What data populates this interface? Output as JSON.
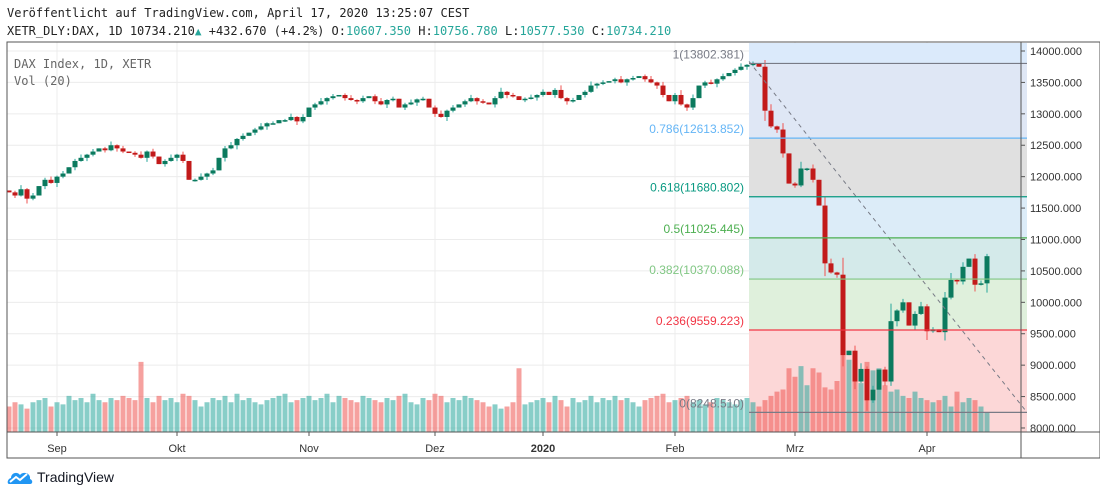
{
  "header": {
    "published": "Veröffentlicht auf TradingView.com, April 17, 2020 13:25:07 CEST",
    "symbol": "XETR_DLY:DAX, 1D",
    "last": "10734.210",
    "change": "+432.670 (+4.2%)",
    "o_label": "O:",
    "o": "10607.350",
    "h_label": "H:",
    "h": "10756.780",
    "l_label": "L:",
    "l": "10577.530",
    "c_label": "C:",
    "c": "10734.210"
  },
  "legend": {
    "title": "DAX Index, 1D, XETR",
    "vol": "Vol (20)"
  },
  "footer": {
    "brand": "TradingView"
  },
  "colors": {
    "up": "#26a69a",
    "down": "#ef5350",
    "upDark": "#0b7a5e",
    "downDark": "#c21a1a"
  },
  "chart_data": {
    "type": "candlestick",
    "ylim": [
      8000,
      14000
    ],
    "yticks": [
      "14000.000",
      "13500.000",
      "13000.000",
      "12500.000",
      "12000.000",
      "11500.000",
      "11000.000",
      "10500.000",
      "10000.000",
      "9500.000",
      "9000.000",
      "8500.000",
      "8000.000"
    ],
    "xticks": [
      {
        "label": "Sep",
        "day": 8
      },
      {
        "label": "Okt",
        "day": 28
      },
      {
        "label": "Nov",
        "day": 50
      },
      {
        "label": "Dez",
        "day": 71
      },
      {
        "label": "2020",
        "day": 89
      },
      {
        "label": "Feb",
        "day": 111
      },
      {
        "label": "Mrz",
        "day": 131
      },
      {
        "label": "Apr",
        "day": 153
      }
    ],
    "start": 11780,
    "closes": [
      11750,
      11700,
      11800,
      11650,
      11700,
      11850,
      11950,
      11900,
      12000,
      12050,
      12150,
      12250,
      12300,
      12350,
      12400,
      12450,
      12420,
      12500,
      12450,
      12400,
      12380,
      12350,
      12300,
      12400,
      12320,
      12200,
      12250,
      12300,
      12350,
      12250,
      11950,
      11950,
      12000,
      12050,
      12100,
      12300,
      12450,
      12500,
      12600,
      12650,
      12700,
      12750,
      12800,
      12850,
      12850,
      12900,
      12900,
      12950,
      12880,
      12950,
      13100,
      13150,
      13200,
      13250,
      13280,
      13300,
      13250,
      13220,
      13200,
      13250,
      13280,
      13200,
      13150,
      13220,
      13240,
      13100,
      13150,
      13180,
      13230,
      13240,
      13100,
      13000,
      12950,
      13050,
      13100,
      13150,
      13200,
      13250,
      13200,
      13180,
      13150,
      13250,
      13350,
      13300,
      13280,
      13220,
      13240,
      13260,
      13300,
      13350,
      13300,
      13380,
      13250,
      13200,
      13220,
      13300,
      13350,
      13450,
      13480,
      13500,
      13520,
      13550,
      13500,
      13550,
      13570,
      13600,
      13550,
      13500,
      13450,
      13300,
      13200,
      13300,
      13150,
      13100,
      13250,
      13450,
      13500,
      13480,
      13550,
      13600,
      13650,
      13700,
      13750,
      13780,
      13800,
      13750,
      13050,
      12800,
      12750,
      12370,
      11890,
      11860,
      12130,
      12130,
      11950,
      11540,
      10620,
      10475,
      10440,
      9160,
      9230,
      8740,
      8940,
      8440,
      8610,
      8930,
      8740,
      9700,
      9870,
      10000,
      9630,
      9815,
      9936,
      9540,
      9570,
      9525,
      10075,
      10356,
      10332,
      10565,
      10696,
      10280,
      10302,
      10734
    ],
    "volumes": [
      60,
      70,
      65,
      55,
      70,
      75,
      80,
      60,
      70,
      65,
      85,
      75,
      80,
      70,
      90,
      75,
      70,
      80,
      75,
      85,
      80,
      75,
      165,
      80,
      70,
      85,
      75,
      80,
      70,
      90,
      85,
      75,
      60,
      70,
      80,
      75,
      85,
      70,
      90,
      75,
      80,
      70,
      65,
      75,
      80,
      85,
      90,
      70,
      75,
      80,
      85,
      75,
      80,
      90,
      70,
      85,
      80,
      75,
      70,
      85,
      80,
      75,
      70,
      80,
      75,
      85,
      90,
      70,
      65,
      80,
      75,
      90,
      85,
      70,
      80,
      75,
      85,
      80,
      75,
      70,
      60,
      65,
      55,
      60,
      70,
      150,
      65,
      70,
      75,
      80,
      70,
      85,
      75,
      60,
      80,
      70,
      75,
      85,
      70,
      80,
      75,
      85,
      75,
      80,
      70,
      60,
      75,
      80,
      85,
      90,
      70,
      75,
      80,
      85,
      70,
      75,
      65,
      70,
      80,
      75,
      70,
      65,
      75,
      80,
      70,
      60,
      75,
      85,
      95,
      100,
      150,
      130,
      155,
      110,
      150,
      140,
      105,
      100,
      120,
      190,
      170,
      125,
      115,
      165,
      145,
      150,
      110,
      95,
      100,
      85,
      80,
      95,
      80,
      75,
      70,
      75,
      85,
      60,
      95,
      70,
      80,
      75,
      60,
      45
    ],
    "fib": {
      "from_day": 124,
      "to_day": 169,
      "levels": [
        {
          "ratio": "1",
          "price": 13802.381,
          "label": "1(13802.381)",
          "color": "#787b86",
          "fill": "#dfe7f5"
        },
        {
          "ratio": "0.786",
          "price": 12613.852,
          "label": "0.786(12613.852)",
          "color": "#64b5f6",
          "fill": "#e0e0e0"
        },
        {
          "ratio": "0.618",
          "price": 11680.802,
          "label": "0.618(11680.802)",
          "color": "#089981",
          "fill": "#dcecf8"
        },
        {
          "ratio": "0.5",
          "price": 11025.445,
          "label": "0.5(11025.445)",
          "color": "#4caf50",
          "fill": "#d4eaea"
        },
        {
          "ratio": "0.382",
          "price": 10370.088,
          "label": "0.382(10370.088)",
          "color": "#81c784",
          "fill": "#dff0dc"
        },
        {
          "ratio": "0.236",
          "price": 9559.223,
          "label": "0.236(9559.223)",
          "color": "#f23645",
          "fill": "#e5f2e3"
        },
        {
          "ratio": "0",
          "price": 8248.51,
          "label": "0(8248.510)",
          "color": "#787b86",
          "fill": "#fcd7d7"
        }
      ],
      "top_fill": "#dbeafb"
    }
  }
}
